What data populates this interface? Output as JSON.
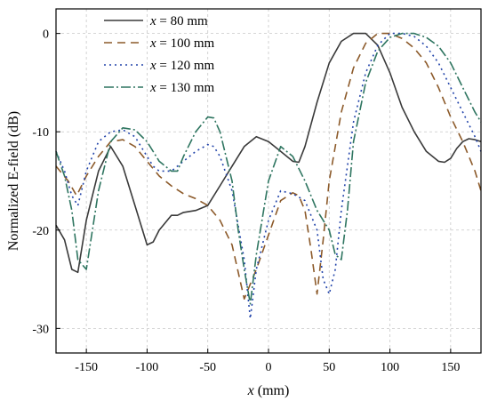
{
  "chart_data": {
    "type": "line",
    "xlabel": {
      "var": "x",
      "unit": " (mm)"
    },
    "ylabel": "Normalized E-field (dB)",
    "xlim": [
      -175,
      175
    ],
    "ylim": [
      -32.5,
      2.5
    ],
    "xticks": [
      -150,
      -100,
      -50,
      0,
      50,
      100,
      150
    ],
    "yticks": [
      0,
      -10,
      -20,
      -30
    ],
    "grid": true,
    "legend_position": "top-left",
    "series": [
      {
        "var": "x",
        "rest": " = 80 mm",
        "color": "#3a3a3a",
        "dash": "solid",
        "x": [
          -175,
          -168,
          -162,
          -157,
          -150,
          -140,
          -130,
          -120,
          -110,
          -100,
          -95,
          -90,
          -80,
          -75,
          -70,
          -60,
          -50,
          -40,
          -30,
          -20,
          -10,
          0,
          10,
          20,
          25,
          30,
          40,
          50,
          60,
          70,
          80,
          90,
          100,
          110,
          120,
          130,
          140,
          145,
          150,
          155,
          160,
          165,
          170,
          175
        ],
        "y": [
          -19.5,
          -21,
          -24,
          -24.3,
          -19,
          -14,
          -11.5,
          -13.5,
          -17.5,
          -21.5,
          -21.2,
          -20,
          -18.5,
          -18.5,
          -18.2,
          -18,
          -17.5,
          -15.5,
          -13.5,
          -11.5,
          -10.5,
          -11,
          -12,
          -13,
          -13.1,
          -11.5,
          -7,
          -3,
          -0.8,
          0,
          0,
          -1.2,
          -4,
          -7.5,
          -10,
          -12,
          -13,
          -13.1,
          -12.7,
          -11.7,
          -11,
          -10.7,
          -10.8,
          -11
        ]
      },
      {
        "var": "x",
        "rest": " = 100 mm",
        "color": "#8c5a2a",
        "dash": "9 6",
        "x": [
          -175,
          -165,
          -158,
          -150,
          -140,
          -130,
          -120,
          -110,
          -100,
          -90,
          -80,
          -70,
          -60,
          -50,
          -40,
          -30,
          -20,
          -15,
          -10,
          0,
          10,
          20,
          25,
          30,
          35,
          40,
          45,
          50,
          60,
          70,
          80,
          90,
          100,
          110,
          120,
          130,
          140,
          150,
          160,
          170,
          175
        ],
        "y": [
          -13.5,
          -15,
          -16.5,
          -14.5,
          -12.5,
          -11,
          -10.8,
          -11.5,
          -13,
          -14.5,
          -15.5,
          -16.3,
          -16.8,
          -17.5,
          -19,
          -21.5,
          -27,
          -25.5,
          -24,
          -20.5,
          -17,
          -16.2,
          -16.5,
          -18,
          -22,
          -26.5,
          -21,
          -15,
          -8,
          -3.5,
          -1,
          0,
          0,
          -0.5,
          -1.5,
          -3,
          -5.5,
          -8.5,
          -11,
          -14,
          -16
        ]
      },
      {
        "var": "x",
        "rest": " = 120 mm",
        "color": "#2244aa",
        "dash": "2 4",
        "x": [
          -175,
          -168,
          -162,
          -157,
          -150,
          -140,
          -130,
          -120,
          -110,
          -100,
          -95,
          -90,
          -80,
          -70,
          -60,
          -50,
          -45,
          -40,
          -30,
          -20,
          -15,
          -10,
          0,
          10,
          20,
          30,
          40,
          45,
          50,
          55,
          60,
          70,
          80,
          90,
          100,
          110,
          120,
          130,
          140,
          150,
          160,
          170,
          175
        ],
        "y": [
          -12,
          -14,
          -16.5,
          -17.5,
          -14,
          -11,
          -10,
          -9.8,
          -10.5,
          -12.5,
          -13.5,
          -14,
          -14,
          -13,
          -12,
          -11.3,
          -11.5,
          -12.5,
          -16,
          -23,
          -29,
          -24,
          -19,
          -16,
          -16.3,
          -17,
          -20,
          -25,
          -26.5,
          -24,
          -18,
          -9,
          -4,
          -1.2,
          0,
          0,
          -0.3,
          -1.3,
          -3,
          -5.5,
          -8,
          -10.5,
          -12
        ]
      },
      {
        "var": "x",
        "rest": " = 130 mm",
        "color": "#2e7560",
        "dash": "11 3 2 3",
        "x": [
          -175,
          -168,
          -162,
          -157,
          -150,
          -140,
          -130,
          -120,
          -110,
          -100,
          -90,
          -80,
          -75,
          -70,
          -60,
          -50,
          -45,
          -40,
          -30,
          -25,
          -20,
          -15,
          -10,
          0,
          10,
          20,
          30,
          40,
          50,
          55,
          60,
          65,
          70,
          80,
          90,
          100,
          110,
          120,
          130,
          140,
          150,
          160,
          170,
          175
        ],
        "y": [
          -12,
          -14.5,
          -18,
          -23,
          -24,
          -16,
          -11,
          -9.6,
          -9.8,
          -11,
          -13,
          -14,
          -14,
          -12.5,
          -10,
          -8.5,
          -8.6,
          -10,
          -15,
          -20,
          -24,
          -27.5,
          -22.5,
          -15,
          -11.5,
          -12.5,
          -15,
          -18,
          -20,
          -22.5,
          -23,
          -18,
          -11,
          -5,
          -1.8,
          -0.4,
          0,
          0,
          -0.4,
          -1.3,
          -3,
          -5.5,
          -8,
          -9
        ]
      }
    ]
  }
}
